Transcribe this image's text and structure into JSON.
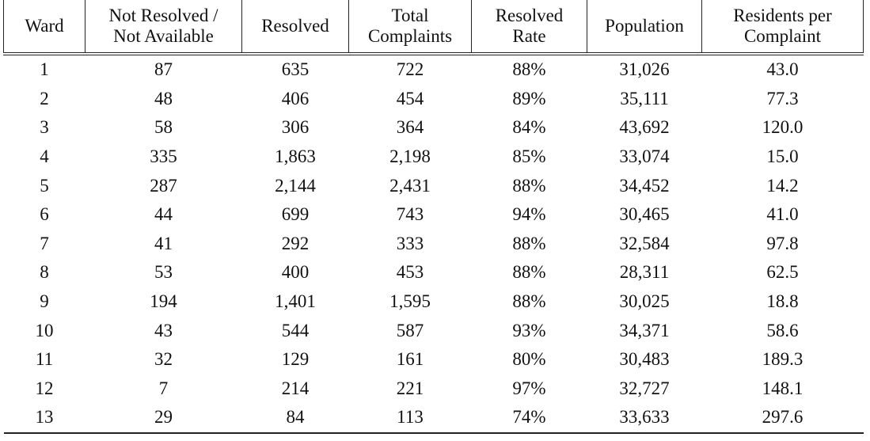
{
  "table": {
    "header": [
      [
        "Ward"
      ],
      [
        "Not Resolved /",
        "Not Available"
      ],
      [
        "Resolved"
      ],
      [
        "Total",
        "Complaints"
      ],
      [
        "Resolved",
        "Rate"
      ],
      [
        "Population"
      ],
      [
        "Residents per",
        "Complaint"
      ]
    ],
    "rows": [
      [
        "1",
        "87",
        "635",
        "722",
        "88%",
        "31,026",
        "43.0"
      ],
      [
        "2",
        "48",
        "406",
        "454",
        "89%",
        "35,111",
        "77.3"
      ],
      [
        "3",
        "58",
        "306",
        "364",
        "84%",
        "43,692",
        "120.0"
      ],
      [
        "4",
        "335",
        "1,863",
        "2,198",
        "85%",
        "33,074",
        "15.0"
      ],
      [
        "5",
        "287",
        "2,144",
        "2,431",
        "88%",
        "34,452",
        "14.2"
      ],
      [
        "6",
        "44",
        "699",
        "743",
        "94%",
        "30,465",
        "41.0"
      ],
      [
        "7",
        "41",
        "292",
        "333",
        "88%",
        "32,584",
        "97.8"
      ],
      [
        "8",
        "53",
        "400",
        "453",
        "88%",
        "28,311",
        "62.5"
      ],
      [
        "9",
        "194",
        "1,401",
        "1,595",
        "88%",
        "30,025",
        "18.8"
      ],
      [
        "10",
        "43",
        "544",
        "587",
        "93%",
        "34,371",
        "58.6"
      ],
      [
        "11",
        "32",
        "129",
        "161",
        "80%",
        "30,483",
        "189.3"
      ],
      [
        "12",
        "7",
        "214",
        "221",
        "97%",
        "32,727",
        "148.1"
      ],
      [
        "13",
        "29",
        "84",
        "113",
        "74%",
        "33,633",
        "297.6"
      ]
    ]
  }
}
